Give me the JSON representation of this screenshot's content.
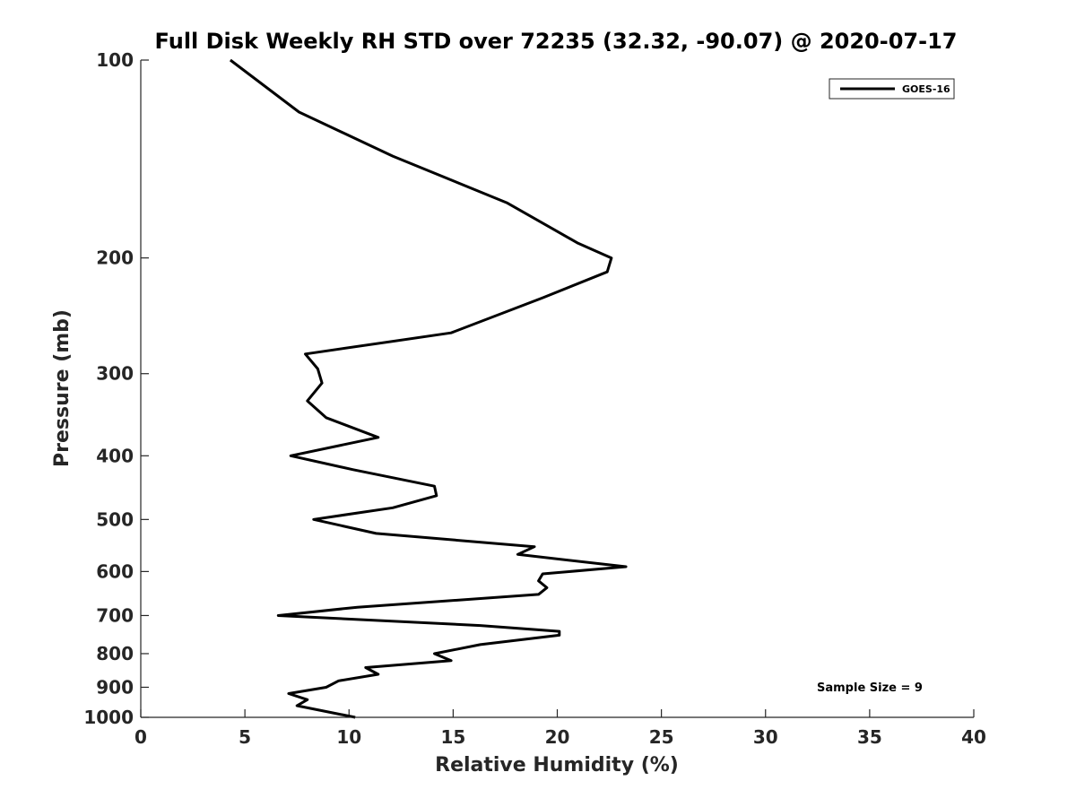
{
  "chart_data": {
    "type": "line",
    "title": "Full Disk Weekly RH STD over 72235 (32.32, -90.07) @ 2020-07-17",
    "xlabel": "Relative Humidity (%)",
    "ylabel": "Pressure (mb)",
    "xlim": [
      0,
      40
    ],
    "ylim": [
      100,
      1000
    ],
    "yscale": "log",
    "yreversed": true,
    "x_ticks": [
      "0",
      "5",
      "10",
      "15",
      "20",
      "25",
      "30",
      "35",
      "40"
    ],
    "y_ticks": [
      "100",
      "200",
      "300",
      "400",
      "500",
      "600",
      "700",
      "800",
      "900",
      "1000"
    ],
    "legend": {
      "position": "top-right",
      "entries": [
        "GOES-16"
      ]
    },
    "annotation": "Sample Size = 9",
    "series": [
      {
        "name": "GOES-16",
        "color": "#000000",
        "points": [
          [
            4.3,
            100
          ],
          [
            7.6,
            120
          ],
          [
            12.1,
            140
          ],
          [
            17.6,
            165
          ],
          [
            21.0,
            190
          ],
          [
            22.6,
            200
          ],
          [
            22.4,
            210
          ],
          [
            19.3,
            230
          ],
          [
            14.9,
            260
          ],
          [
            7.9,
            280
          ],
          [
            8.5,
            295
          ],
          [
            8.7,
            310
          ],
          [
            8.0,
            330
          ],
          [
            8.9,
            350
          ],
          [
            11.4,
            375
          ],
          [
            7.2,
            400
          ],
          [
            10.2,
            420
          ],
          [
            14.1,
            445
          ],
          [
            14.2,
            460
          ],
          [
            12.1,
            480
          ],
          [
            8.3,
            500
          ],
          [
            11.3,
            525
          ],
          [
            18.9,
            550
          ],
          [
            18.1,
            565
          ],
          [
            23.3,
            590
          ],
          [
            19.3,
            605
          ],
          [
            19.1,
            620
          ],
          [
            19.5,
            635
          ],
          [
            19.1,
            650
          ],
          [
            10.4,
            680
          ],
          [
            6.6,
            700
          ],
          [
            16.3,
            725
          ],
          [
            20.1,
            740
          ],
          [
            20.1,
            750
          ],
          [
            16.3,
            775
          ],
          [
            14.1,
            800
          ],
          [
            14.9,
            820
          ],
          [
            10.8,
            840
          ],
          [
            11.4,
            860
          ],
          [
            9.5,
            880
          ],
          [
            8.9,
            900
          ],
          [
            7.1,
            920
          ],
          [
            8.0,
            940
          ],
          [
            7.5,
            960
          ],
          [
            10.3,
            1000
          ]
        ]
      }
    ]
  }
}
